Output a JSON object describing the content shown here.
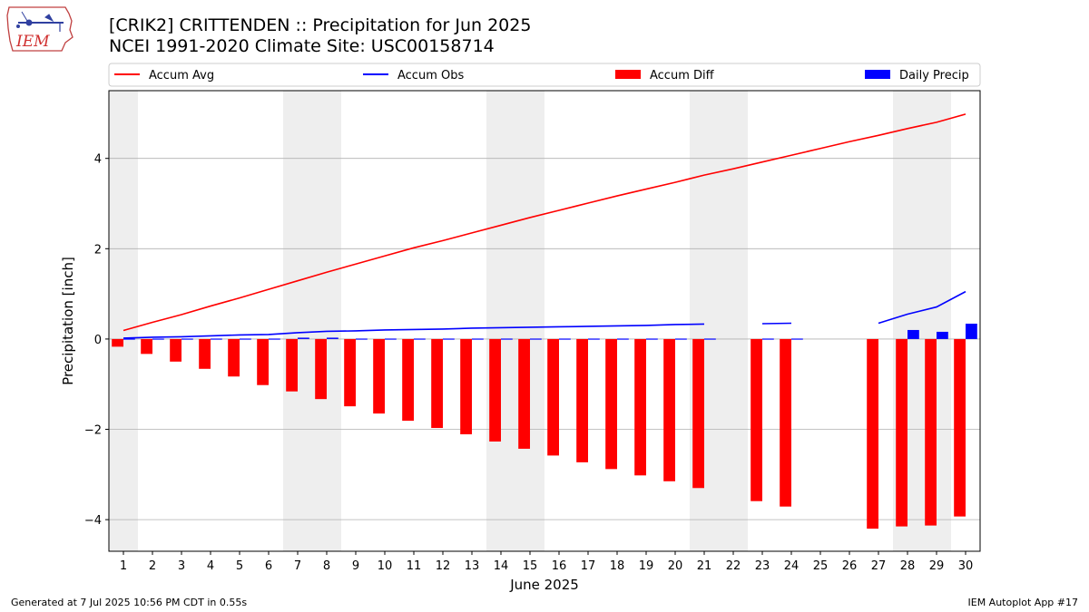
{
  "title": "[CRIK2] CRITTENDEN :: Precipitation for Jun 2025",
  "subtitle": "NCEI 1991-2020 Climate Site: USC00158714",
  "logo_text": "IEM",
  "footer_left": "Generated at 7 Jul 2025 10:56 PM CDT in 0.55s",
  "footer_right": "IEM Autoplot App #17",
  "colors": {
    "accum_avg": "#ff0000",
    "accum_obs": "#0000ff",
    "accum_diff": "#ff0000",
    "daily_precip": "#0000ff",
    "weekend_shade": "#eeeeee",
    "grid": "#b0b0b0"
  },
  "chart_data": {
    "type": "bar",
    "xlabel": "June 2025",
    "ylabel": "Precipitation [inch]",
    "ylim": [
      -4.7,
      5.5
    ],
    "xlim": [
      0.5,
      30.5
    ],
    "yticks": [
      -4,
      -2,
      0,
      2,
      4
    ],
    "grid": "horizontal",
    "legend_position": "top",
    "x": [
      1,
      2,
      3,
      4,
      5,
      6,
      7,
      8,
      9,
      10,
      11,
      12,
      13,
      14,
      15,
      16,
      17,
      18,
      19,
      20,
      21,
      22,
      23,
      24,
      25,
      26,
      27,
      28,
      29,
      30
    ],
    "weekend_days": [
      1,
      7,
      8,
      14,
      15,
      21,
      22,
      28,
      29
    ],
    "series": [
      {
        "name": "Accum Avg",
        "kind": "line",
        "values": [
          0.19,
          0.37,
          0.54,
          0.73,
          0.91,
          1.1,
          1.29,
          1.48,
          1.66,
          1.84,
          2.02,
          2.18,
          2.35,
          2.52,
          2.69,
          2.85,
          3.01,
          3.17,
          3.32,
          3.47,
          3.63,
          3.77,
          3.92,
          4.07,
          4.22,
          4.37,
          4.51,
          4.66,
          4.8,
          4.98
        ]
      },
      {
        "name": "Accum Obs",
        "kind": "line",
        "values": [
          0.02,
          0.04,
          0.05,
          0.07,
          0.09,
          0.1,
          0.14,
          0.17,
          0.18,
          0.2,
          0.21,
          0.22,
          0.24,
          0.25,
          0.26,
          0.27,
          0.28,
          0.29,
          0.3,
          0.32,
          0.33,
          null,
          0.34,
          0.35,
          null,
          null,
          0.35,
          0.55,
          0.71,
          1.05
        ]
      },
      {
        "name": "Accum Diff",
        "kind": "bar",
        "values": [
          -0.17,
          -0.33,
          -0.5,
          -0.66,
          -0.83,
          -1.02,
          -1.16,
          -1.33,
          -1.49,
          -1.65,
          -1.81,
          -1.97,
          -2.11,
          -2.27,
          -2.43,
          -2.58,
          -2.73,
          -2.88,
          -3.02,
          -3.15,
          -3.3,
          null,
          -3.59,
          -3.71,
          null,
          null,
          -4.2,
          -4.15,
          -4.13,
          -3.93
        ]
      },
      {
        "name": "Daily Precip",
        "kind": "bar",
        "values": [
          0.01,
          0.01,
          0.01,
          0.01,
          0.01,
          0.01,
          0.03,
          0.03,
          0.01,
          0.01,
          0.01,
          0.01,
          0.01,
          0.01,
          0.01,
          0.01,
          0.01,
          0.01,
          0.01,
          0.01,
          0.01,
          null,
          0.01,
          0.01,
          null,
          null,
          null,
          0.2,
          0.16,
          0.34
        ]
      }
    ]
  }
}
